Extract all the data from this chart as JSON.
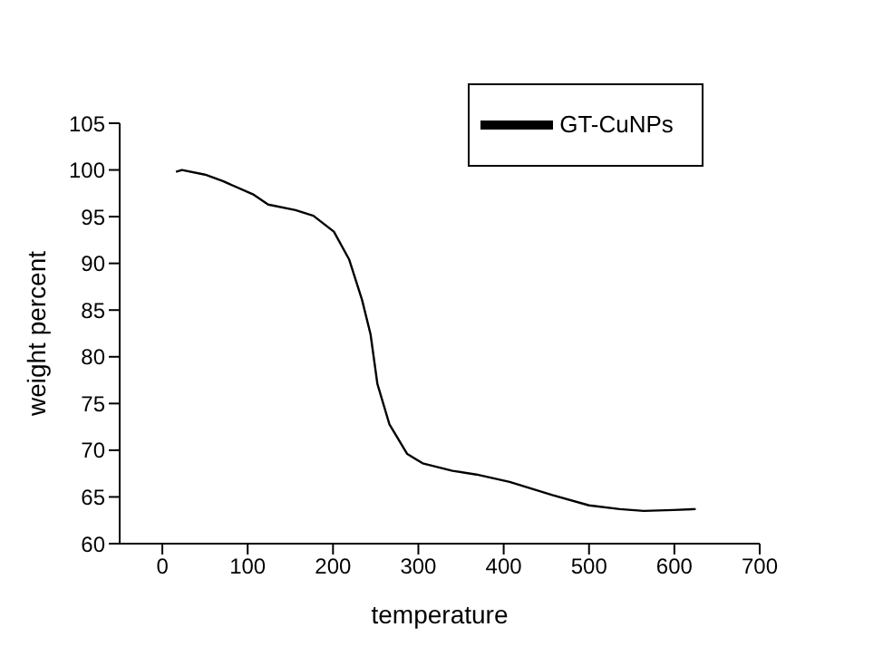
{
  "chart_data": {
    "type": "line",
    "xlabel": "temperature",
    "ylabel": "weight percent",
    "xlim": [
      -50,
      700
    ],
    "xticks": [
      0,
      100,
      200,
      300,
      400,
      500,
      600,
      700
    ],
    "ylim": [
      60,
      105
    ],
    "yticks": [
      60,
      65,
      70,
      75,
      80,
      85,
      90,
      95,
      100,
      105
    ],
    "grid": false,
    "legend": "top",
    "marker": "none",
    "line_style": "solid",
    "series": [
      {
        "name": "GT-CuNPs",
        "color": "#000000",
        "x": [
          16,
          23,
          50,
          71,
          106,
          124,
          156,
          177,
          201,
          219,
          234,
          244,
          252,
          266,
          287,
          305,
          340,
          368,
          407,
          457,
          500,
          536,
          564,
          599,
          625
        ],
        "values": [
          99.8,
          100.0,
          99.5,
          98.8,
          97.4,
          96.3,
          95.7,
          95.1,
          93.4,
          90.4,
          86.1,
          82.4,
          77.1,
          72.8,
          69.6,
          68.6,
          67.8,
          67.4,
          66.6,
          65.2,
          64.1,
          63.7,
          63.5,
          63.6,
          63.7
        ]
      }
    ]
  }
}
